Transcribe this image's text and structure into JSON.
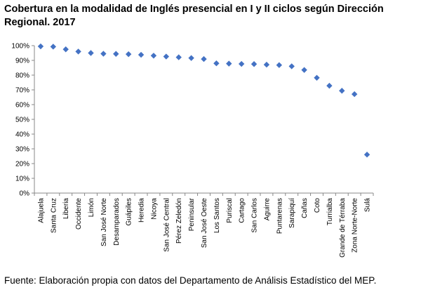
{
  "header": {
    "title": "Cobertura en la modalidad de Inglés presencial en I y II ciclos según Dirección Regional. 2017"
  },
  "footer": {
    "source": "Fuente: Elaboración propia con datos del Departamento de Análisis Estadístico del MEP."
  },
  "colors": {
    "marker": "#4472C4",
    "axis": "#888888"
  },
  "chart_data": {
    "type": "scatter",
    "title": "Cobertura en la modalidad de Inglés presencial en I y II ciclos según Dirección Regional. 2017",
    "xlabel": "",
    "ylabel": "",
    "ylim": [
      0,
      100
    ],
    "y_ticks": [
      "0%",
      "10%",
      "20%",
      "30%",
      "40%",
      "50%",
      "60%",
      "70%",
      "80%",
      "90%",
      "100%"
    ],
    "grid": false,
    "legend": "none",
    "categories": [
      "Alajuela",
      "Santa Cruz",
      "Liberia",
      "Occidente",
      "Limón",
      "San José Norte",
      "Desamparados",
      "Guápiles",
      "Heredia",
      "Nicoya",
      "San José Central",
      "Pérez Zeledón",
      "Peninsular",
      "San José Oeste",
      "Los Santos",
      "Puriscal",
      "Cartago",
      "San Carlos",
      "Aguirre",
      "Puntarenas",
      "Sarapiquí",
      "Cañas",
      "Coto",
      "Turrialba",
      "Grande de Térraba",
      "Zona Norte-Norte",
      "Sulá"
    ],
    "values": [
      99.5,
      99.3,
      97.5,
      96.0,
      95.0,
      94.5,
      94.4,
      94.2,
      93.8,
      93.2,
      92.6,
      92.1,
      91.6,
      90.9,
      88.0,
      87.8,
      87.6,
      87.5,
      87.1,
      86.8,
      86.0,
      83.5,
      78.2,
      72.8,
      69.4,
      67.1,
      26.1
    ]
  }
}
